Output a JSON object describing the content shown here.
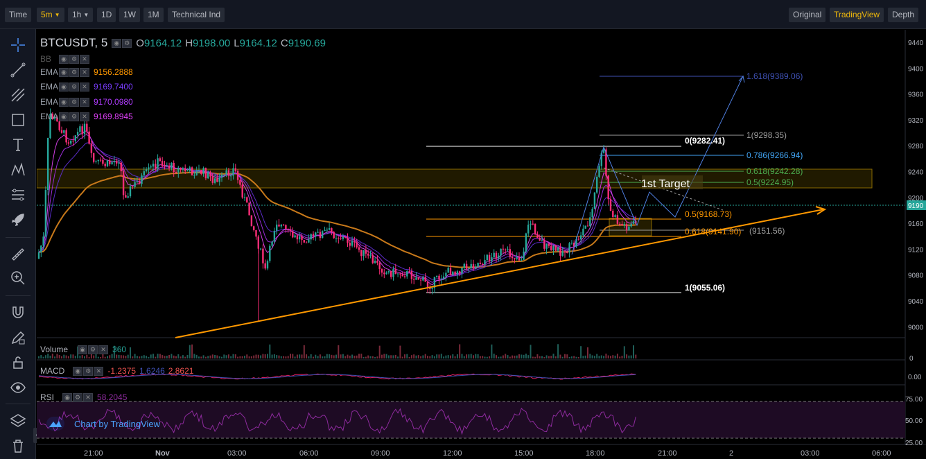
{
  "toolbar": {
    "time": "Time",
    "interval": "5m",
    "h1": "1h",
    "d1": "1D",
    "w1": "1W",
    "m1": "1M",
    "tech": "Technical Ind",
    "original": "Original",
    "tradingview": "TradingView",
    "depth": "Depth"
  },
  "left_tools": [
    "crosshair-icon",
    "trend-line-icon",
    "pitchfork-icon",
    "rectangle-icon",
    "text-icon",
    "pattern-icon",
    "fib-icon",
    "rocket-icon",
    "ruler-icon",
    "zoom-in-icon",
    "magnet-icon",
    "pencil-lock-icon",
    "lock-icon",
    "eye-icon",
    "layers-icon",
    "trash-icon"
  ],
  "legend": {
    "symbol": "BTCUSDT, 5",
    "o_label": "O",
    "o_val": "9164.12",
    "h_label": "H",
    "h_val": "9198.00",
    "l_label": "L",
    "l_val": "9164.12",
    "c_label": "C",
    "c_val": "9190.69",
    "bb": "BB",
    "ema_label": "EMA",
    "ema_vals": [
      "9156.2888",
      "9169.7400",
      "9170.0980",
      "9169.8945"
    ],
    "ema_colors": [
      "#ff9800",
      "#7a3cff",
      "#b03cff",
      "#e040fb"
    ]
  },
  "price_axis": [
    "9440",
    "9400",
    "9360",
    "9320",
    "9280",
    "9240",
    "9200",
    "9160",
    "9120",
    "9080",
    "9040",
    "9000"
  ],
  "current_price_tag": "9190",
  "time_axis": [
    "21:00",
    "Nov",
    "03:00",
    "06:00",
    "09:00",
    "12:00",
    "15:00",
    "18:00",
    "21:00",
    "2",
    "03:00",
    "06:00"
  ],
  "volume": {
    "label": "Volume",
    "value": "360",
    "axis0": "0"
  },
  "macd": {
    "label": "MACD",
    "v1": "-1.2375",
    "v2": "1.6246",
    "v3": "2.8621",
    "axis": "0.00"
  },
  "rsi": {
    "label": "RSI",
    "value": "58.2045",
    "ticks": [
      "75.00",
      "50.00",
      "25.00"
    ]
  },
  "fib_right": [
    {
      "text": "1.618(9389.06)",
      "color": "#3f51b5"
    },
    {
      "text": "1(9298.35)",
      "color": "#9e9e9e"
    },
    {
      "text": "0.786(9266.94)",
      "color": "#42a5f5"
    },
    {
      "text": "0.618(9242.28)",
      "color": "#4caf50"
    },
    {
      "text": "0.5(9224.95)",
      "color": "#4caf50"
    },
    {
      "text": "(9151.56)",
      "color": "#9e9e9e"
    }
  ],
  "fib_left": [
    {
      "text": "0(9282.41)",
      "color": "#ffffff"
    },
    {
      "text": "0.5(9168.73)",
      "color": "#ff9800"
    },
    {
      "text": "0.618(9141.90)",
      "color": "#ff9800"
    },
    {
      "text": "1(9055.06)",
      "color": "#ffffff"
    }
  ],
  "target_label": "1st Target",
  "attribution": "Chart by TradingView",
  "colors": {
    "up": "#26a69a",
    "down": "#ef5350",
    "pink": "#ff2d78",
    "orange": "#ff9800",
    "accent": "#f0b90b"
  }
}
